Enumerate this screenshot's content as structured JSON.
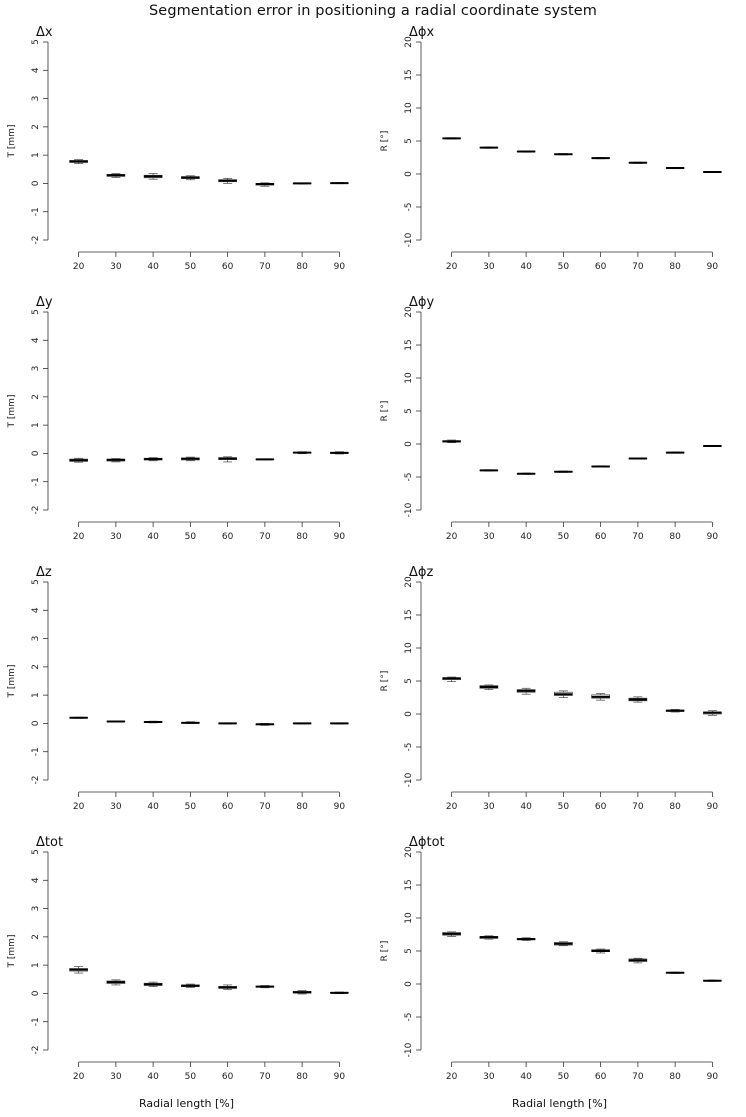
{
  "title": "Segmentation error in positioning a radial coordinate system",
  "x_axis_label": "Radial length [%]",
  "chart_data": [
    {
      "type": "boxplot",
      "panel_label": "Δx",
      "ylabel": "T [mm]",
      "ylim": [
        -2,
        5
      ],
      "yticks": [
        -2,
        -1,
        0,
        1,
        2,
        3,
        4,
        5
      ],
      "categories": [
        "20",
        "30",
        "40",
        "50",
        "60",
        "70",
        "80",
        "90"
      ],
      "boxes": [
        {
          "median": 0.78,
          "q1": 0.74,
          "q3": 0.81,
          "low": 0.7,
          "high": 0.84
        },
        {
          "median": 0.29,
          "q1": 0.25,
          "q3": 0.32,
          "low": 0.21,
          "high": 0.35
        },
        {
          "median": 0.25,
          "q1": 0.2,
          "q3": 0.29,
          "low": 0.15,
          "high": 0.35
        },
        {
          "median": 0.21,
          "q1": 0.17,
          "q3": 0.24,
          "low": 0.13,
          "high": 0.27
        },
        {
          "median": 0.1,
          "q1": 0.06,
          "q3": 0.13,
          "low": 0.0,
          "high": 0.18
        },
        {
          "median": -0.02,
          "q1": -0.06,
          "q3": 0.0,
          "low": -0.1,
          "high": 0.02
        },
        {
          "median": 0.0,
          "q1": -0.01,
          "q3": 0.01,
          "low": -0.02,
          "high": 0.02
        },
        {
          "median": 0.01,
          "q1": 0.0,
          "q3": 0.02,
          "low": -0.01,
          "high": 0.03
        }
      ]
    },
    {
      "type": "boxplot",
      "panel_label": "Δϕx",
      "ylabel": "R [°]",
      "ylim": [
        -10,
        20
      ],
      "yticks": [
        -10,
        -5,
        0,
        5,
        10,
        15,
        20
      ],
      "categories": [
        "20",
        "30",
        "40",
        "50",
        "60",
        "70",
        "80",
        "90"
      ],
      "boxes": [
        {
          "median": 5.4,
          "q1": 5.35,
          "q3": 5.45,
          "low": 5.3,
          "high": 5.5
        },
        {
          "median": 4.0,
          "q1": 3.95,
          "q3": 4.05,
          "low": 3.9,
          "high": 4.1
        },
        {
          "median": 3.4,
          "q1": 3.35,
          "q3": 3.45,
          "low": 3.3,
          "high": 3.5
        },
        {
          "median": 3.0,
          "q1": 2.95,
          "q3": 3.05,
          "low": 2.9,
          "high": 3.1
        },
        {
          "median": 2.4,
          "q1": 2.35,
          "q3": 2.45,
          "low": 2.3,
          "high": 2.5
        },
        {
          "median": 1.7,
          "q1": 1.65,
          "q3": 1.75,
          "low": 1.6,
          "high": 1.8
        },
        {
          "median": 0.9,
          "q1": 0.85,
          "q3": 0.95,
          "low": 0.8,
          "high": 1.0
        },
        {
          "median": 0.3,
          "q1": 0.25,
          "q3": 0.35,
          "low": 0.2,
          "high": 0.4
        }
      ]
    },
    {
      "type": "boxplot",
      "panel_label": "Δy",
      "ylabel": "T [mm]",
      "ylim": [
        -2,
        5
      ],
      "yticks": [
        -2,
        -1,
        0,
        1,
        2,
        3,
        4,
        5
      ],
      "categories": [
        "20",
        "30",
        "40",
        "50",
        "60",
        "70",
        "80",
        "90"
      ],
      "boxes": [
        {
          "median": -0.24,
          "q1": -0.28,
          "q3": -0.2,
          "low": -0.31,
          "high": -0.17
        },
        {
          "median": -0.23,
          "q1": -0.27,
          "q3": -0.2,
          "low": -0.3,
          "high": -0.18
        },
        {
          "median": -0.2,
          "q1": -0.23,
          "q3": -0.17,
          "low": -0.26,
          "high": -0.15
        },
        {
          "median": -0.19,
          "q1": -0.23,
          "q3": -0.16,
          "low": -0.26,
          "high": -0.13
        },
        {
          "median": -0.18,
          "q1": -0.22,
          "q3": -0.15,
          "low": -0.3,
          "high": -0.12
        },
        {
          "median": -0.21,
          "q1": -0.22,
          "q3": -0.2,
          "low": -0.23,
          "high": -0.19
        },
        {
          "median": 0.03,
          "q1": 0.01,
          "q3": 0.04,
          "low": -0.01,
          "high": 0.06
        },
        {
          "median": 0.02,
          "q1": 0.0,
          "q3": 0.04,
          "low": -0.02,
          "high": 0.06
        }
      ]
    },
    {
      "type": "boxplot",
      "panel_label": "Δϕy",
      "ylabel": "R [°]",
      "ylim": [
        -10,
        20
      ],
      "yticks": [
        -10,
        -5,
        0,
        5,
        10,
        15,
        20
      ],
      "categories": [
        "20",
        "30",
        "40",
        "50",
        "60",
        "70",
        "80",
        "90"
      ],
      "boxes": [
        {
          "median": 0.4,
          "q1": 0.3,
          "q3": 0.5,
          "low": 0.2,
          "high": 0.6
        },
        {
          "median": -4.0,
          "q1": -4.05,
          "q3": -3.95,
          "low": -4.1,
          "high": -3.9
        },
        {
          "median": -4.5,
          "q1": -4.55,
          "q3": -4.45,
          "low": -4.6,
          "high": -4.4
        },
        {
          "median": -4.2,
          "q1": -4.25,
          "q3": -4.15,
          "low": -4.3,
          "high": -4.1
        },
        {
          "median": -3.4,
          "q1": -3.45,
          "q3": -3.35,
          "low": -3.5,
          "high": -3.3
        },
        {
          "median": -2.2,
          "q1": -2.25,
          "q3": -2.15,
          "low": -2.3,
          "high": -2.1
        },
        {
          "median": -1.3,
          "q1": -1.35,
          "q3": -1.25,
          "low": -1.4,
          "high": -1.2
        },
        {
          "median": -0.3,
          "q1": -0.35,
          "q3": -0.25,
          "low": -0.4,
          "high": -0.2
        }
      ]
    },
    {
      "type": "boxplot",
      "panel_label": "Δz",
      "ylabel": "T [mm]",
      "ylim": [
        -2,
        5
      ],
      "yticks": [
        -2,
        -1,
        0,
        1,
        2,
        3,
        4,
        5
      ],
      "categories": [
        "20",
        "30",
        "40",
        "50",
        "60",
        "70",
        "80",
        "90"
      ],
      "boxes": [
        {
          "median": 0.2,
          "q1": 0.19,
          "q3": 0.21,
          "low": 0.18,
          "high": 0.22
        },
        {
          "median": 0.07,
          "q1": 0.06,
          "q3": 0.08,
          "low": 0.05,
          "high": 0.09
        },
        {
          "median": 0.05,
          "q1": 0.03,
          "q3": 0.06,
          "low": 0.02,
          "high": 0.08
        },
        {
          "median": 0.02,
          "q1": 0.01,
          "q3": 0.04,
          "low": 0.0,
          "high": 0.06
        },
        {
          "median": 0.0,
          "q1": -0.01,
          "q3": 0.01,
          "low": -0.02,
          "high": 0.02
        },
        {
          "median": -0.03,
          "q1": -0.05,
          "q3": -0.02,
          "low": -0.07,
          "high": 0.0
        },
        {
          "median": 0.0,
          "q1": -0.01,
          "q3": 0.01,
          "low": -0.02,
          "high": 0.02
        },
        {
          "median": 0.0,
          "q1": -0.01,
          "q3": 0.01,
          "low": -0.02,
          "high": 0.02
        }
      ]
    },
    {
      "type": "boxplot",
      "panel_label": "Δϕz",
      "ylabel": "R [°]",
      "ylim": [
        -10,
        20
      ],
      "yticks": [
        -10,
        -5,
        0,
        5,
        10,
        15,
        20
      ],
      "categories": [
        "20",
        "30",
        "40",
        "50",
        "60",
        "70",
        "80",
        "90"
      ],
      "boxes": [
        {
          "median": 5.4,
          "q1": 5.2,
          "q3": 5.5,
          "low": 4.9,
          "high": 5.6
        },
        {
          "median": 4.1,
          "q1": 3.9,
          "q3": 4.3,
          "low": 3.7,
          "high": 4.4
        },
        {
          "median": 3.5,
          "q1": 3.3,
          "q3": 3.7,
          "low": 3.0,
          "high": 3.9
        },
        {
          "median": 3.0,
          "q1": 2.8,
          "q3": 3.3,
          "low": 2.5,
          "high": 3.5
        },
        {
          "median": 2.6,
          "q1": 2.4,
          "q3": 2.9,
          "low": 2.1,
          "high": 3.1
        },
        {
          "median": 2.2,
          "q1": 2.0,
          "q3": 2.4,
          "low": 1.8,
          "high": 2.6
        },
        {
          "median": 0.5,
          "q1": 0.4,
          "q3": 0.6,
          "low": 0.3,
          "high": 0.7
        },
        {
          "median": 0.2,
          "q1": 0.0,
          "q3": 0.3,
          "low": -0.2,
          "high": 0.5
        }
      ]
    },
    {
      "type": "boxplot",
      "panel_label": "Δtot",
      "ylabel": "T [mm]",
      "ylim": [
        -2,
        5
      ],
      "yticks": [
        -2,
        -1,
        0,
        1,
        2,
        3,
        4,
        5
      ],
      "categories": [
        "20",
        "30",
        "40",
        "50",
        "60",
        "70",
        "80",
        "90"
      ],
      "boxes": [
        {
          "median": 0.84,
          "q1": 0.79,
          "q3": 0.88,
          "low": 0.72,
          "high": 0.95
        },
        {
          "median": 0.4,
          "q1": 0.35,
          "q3": 0.44,
          "low": 0.3,
          "high": 0.48
        },
        {
          "median": 0.32,
          "q1": 0.28,
          "q3": 0.36,
          "low": 0.24,
          "high": 0.4
        },
        {
          "median": 0.27,
          "q1": 0.24,
          "q3": 0.3,
          "low": 0.21,
          "high": 0.33
        },
        {
          "median": 0.21,
          "q1": 0.18,
          "q3": 0.25,
          "low": 0.14,
          "high": 0.3
        },
        {
          "median": 0.24,
          "q1": 0.22,
          "q3": 0.26,
          "low": 0.2,
          "high": 0.28
        },
        {
          "median": 0.04,
          "q1": 0.01,
          "q3": 0.07,
          "low": -0.02,
          "high": 0.1
        },
        {
          "median": 0.02,
          "q1": 0.01,
          "q3": 0.04,
          "low": -0.01,
          "high": 0.05
        }
      ]
    },
    {
      "type": "boxplot",
      "panel_label": "Δϕtot",
      "ylabel": "R [°]",
      "ylim": [
        -10,
        20
      ],
      "yticks": [
        -10,
        -5,
        0,
        5,
        10,
        15,
        20
      ],
      "categories": [
        "20",
        "30",
        "40",
        "50",
        "60",
        "70",
        "80",
        "90"
      ],
      "boxes": [
        {
          "median": 7.6,
          "q1": 7.4,
          "q3": 7.8,
          "low": 7.2,
          "high": 7.9
        },
        {
          "median": 7.1,
          "q1": 6.9,
          "q3": 7.2,
          "low": 6.8,
          "high": 7.3
        },
        {
          "median": 6.8,
          "q1": 6.7,
          "q3": 6.9,
          "low": 6.6,
          "high": 7.0
        },
        {
          "median": 6.1,
          "q1": 5.9,
          "q3": 6.3,
          "low": 5.8,
          "high": 6.4
        },
        {
          "median": 5.0,
          "q1": 4.9,
          "q3": 5.2,
          "low": 4.7,
          "high": 5.3
        },
        {
          "median": 3.6,
          "q1": 3.4,
          "q3": 3.8,
          "low": 3.2,
          "high": 3.9
        },
        {
          "median": 1.7,
          "q1": 1.65,
          "q3": 1.75,
          "low": 1.6,
          "high": 1.8
        },
        {
          "median": 0.5,
          "q1": 0.45,
          "q3": 0.55,
          "low": 0.4,
          "high": 0.6
        }
      ]
    }
  ]
}
